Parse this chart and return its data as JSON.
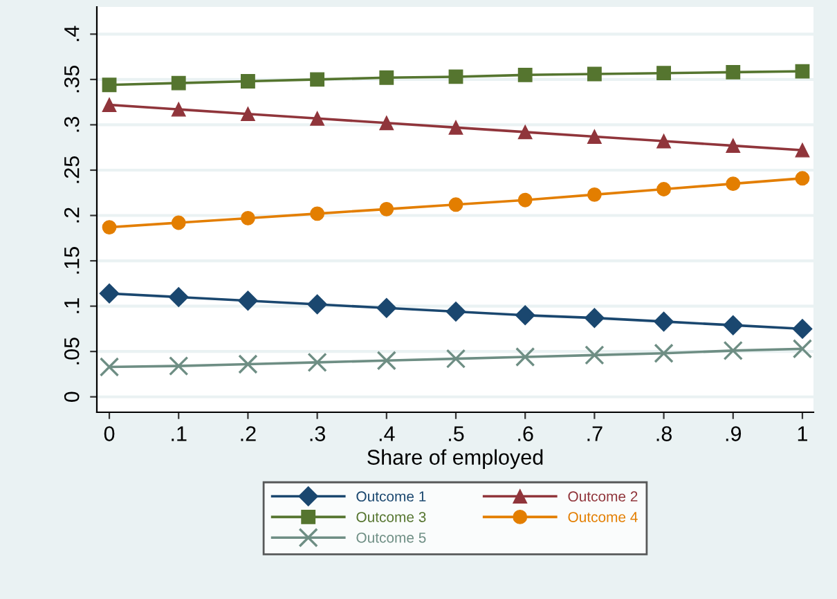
{
  "chart_data": {
    "type": "line",
    "xlabel": "Share of employed",
    "x": [
      0,
      0.1,
      0.2,
      0.3,
      0.4,
      0.5,
      0.6,
      0.7,
      0.8,
      0.9,
      1
    ],
    "xlim": [
      -0.018,
      1.016
    ],
    "ylim": [
      -0.017,
      0.43
    ],
    "xticks": [
      {
        "value": 0,
        "label": "0"
      },
      {
        "value": 0.1,
        "label": ".1"
      },
      {
        "value": 0.2,
        "label": ".2"
      },
      {
        "value": 0.3,
        "label": ".3"
      },
      {
        "value": 0.4,
        "label": ".4"
      },
      {
        "value": 0.5,
        "label": ".5"
      },
      {
        "value": 0.6,
        "label": ".6"
      },
      {
        "value": 0.7,
        "label": ".7"
      },
      {
        "value": 0.8,
        "label": ".8"
      },
      {
        "value": 0.9,
        "label": ".9"
      },
      {
        "value": 1,
        "label": "1"
      }
    ],
    "yticks": [
      {
        "value": 0,
        "label": "0"
      },
      {
        "value": 0.05,
        "label": ".05"
      },
      {
        "value": 0.1,
        "label": ".1"
      },
      {
        "value": 0.15,
        "label": ".15"
      },
      {
        "value": 0.2,
        "label": ".2"
      },
      {
        "value": 0.25,
        "label": ".25"
      },
      {
        "value": 0.3,
        "label": ".3"
      },
      {
        "value": 0.35,
        "label": ".35"
      },
      {
        "value": 0.4,
        "label": ".4"
      }
    ],
    "grid": "y",
    "legend": "bottom",
    "series": [
      {
        "name": "Outcome 1",
        "color": "#1a476f",
        "marker": "diamond",
        "values": [
          0.114,
          0.11,
          0.106,
          0.102,
          0.098,
          0.094,
          0.09,
          0.087,
          0.083,
          0.079,
          0.075
        ]
      },
      {
        "name": "Outcome 2",
        "color": "#90353b",
        "marker": "triangle",
        "values": [
          0.322,
          0.317,
          0.312,
          0.307,
          0.302,
          0.297,
          0.292,
          0.287,
          0.282,
          0.277,
          0.272
        ]
      },
      {
        "name": "Outcome 3",
        "color": "#55752f",
        "marker": "square",
        "values": [
          0.344,
          0.346,
          0.348,
          0.35,
          0.352,
          0.353,
          0.355,
          0.356,
          0.357,
          0.358,
          0.359
        ]
      },
      {
        "name": "Outcome 4",
        "color": "#e37e00",
        "marker": "circle",
        "values": [
          0.187,
          0.192,
          0.197,
          0.202,
          0.207,
          0.212,
          0.217,
          0.223,
          0.229,
          0.235,
          0.241
        ]
      },
      {
        "name": "Outcome 5",
        "color": "#6e8e84",
        "marker": "cross",
        "values": [
          0.033,
          0.034,
          0.036,
          0.038,
          0.04,
          0.042,
          0.044,
          0.046,
          0.048,
          0.051,
          0.053
        ]
      }
    ]
  }
}
